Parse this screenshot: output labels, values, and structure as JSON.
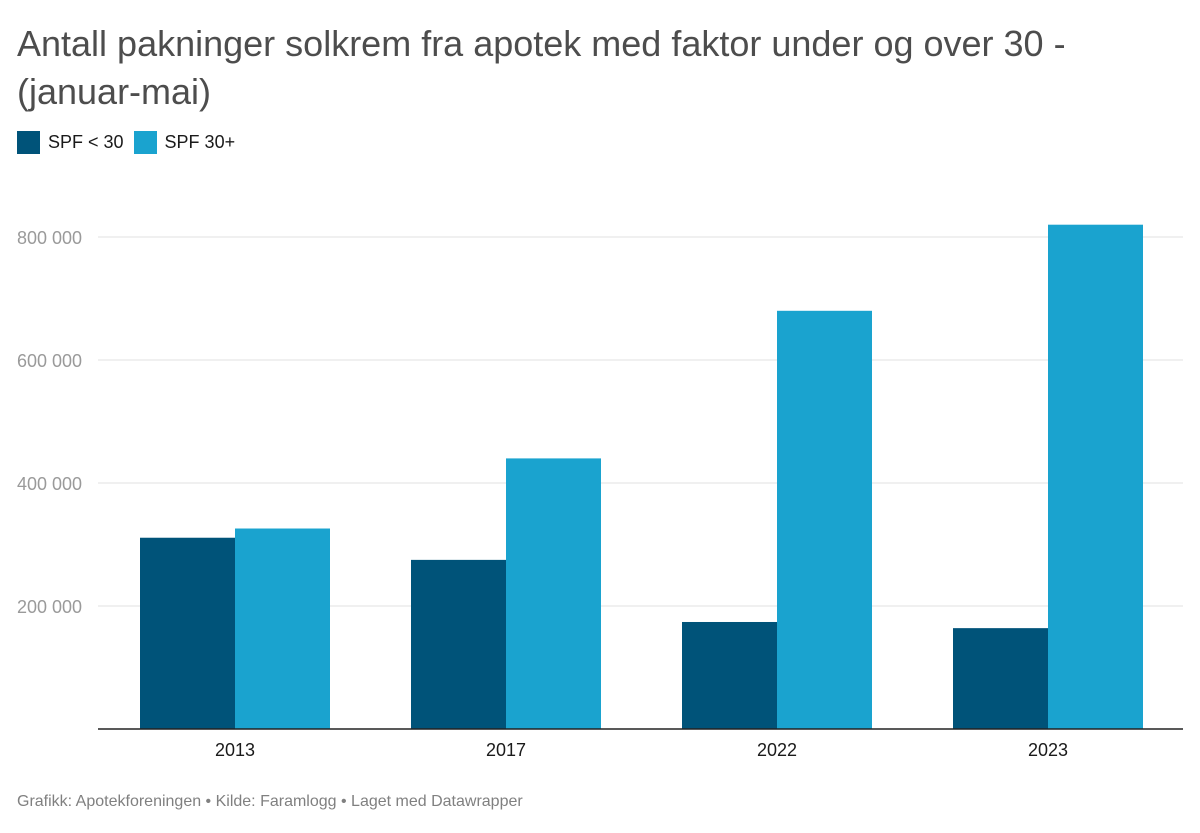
{
  "title": "Antall pakninger solkrem fra apotek med faktor under og over 30 - (januar-mai)",
  "footer": "Grafikk: Apotekforeningen • Kilde: Faramlogg • Laget med Datawrapper",
  "colors": {
    "spf_under_30": "#005379",
    "spf_30_plus": "#1aa3cf",
    "grid": "#e0e0e0",
    "axis": "#222222",
    "tick_label": "#9a9a9a"
  },
  "chart_data": {
    "type": "bar",
    "title": "Antall pakninger solkrem fra apotek med faktor under og over 30 - (januar-mai)",
    "categories": [
      "2013",
      "2017",
      "2022",
      "2023"
    ],
    "series": [
      {
        "name": "SPF < 30",
        "values": [
          311000,
          275000,
          174000,
          164000
        ]
      },
      {
        "name": "SPF 30+",
        "values": [
          326000,
          440000,
          680000,
          820000
        ]
      }
    ],
    "y_ticks": [
      200000,
      400000,
      600000,
      800000
    ],
    "y_tick_labels": [
      "200 000",
      "400 000",
      "600 000",
      "800 000"
    ],
    "ylim": [
      0,
      850000
    ],
    "grid": true,
    "legend_position": "top-left",
    "xlabel": "",
    "ylabel": ""
  }
}
